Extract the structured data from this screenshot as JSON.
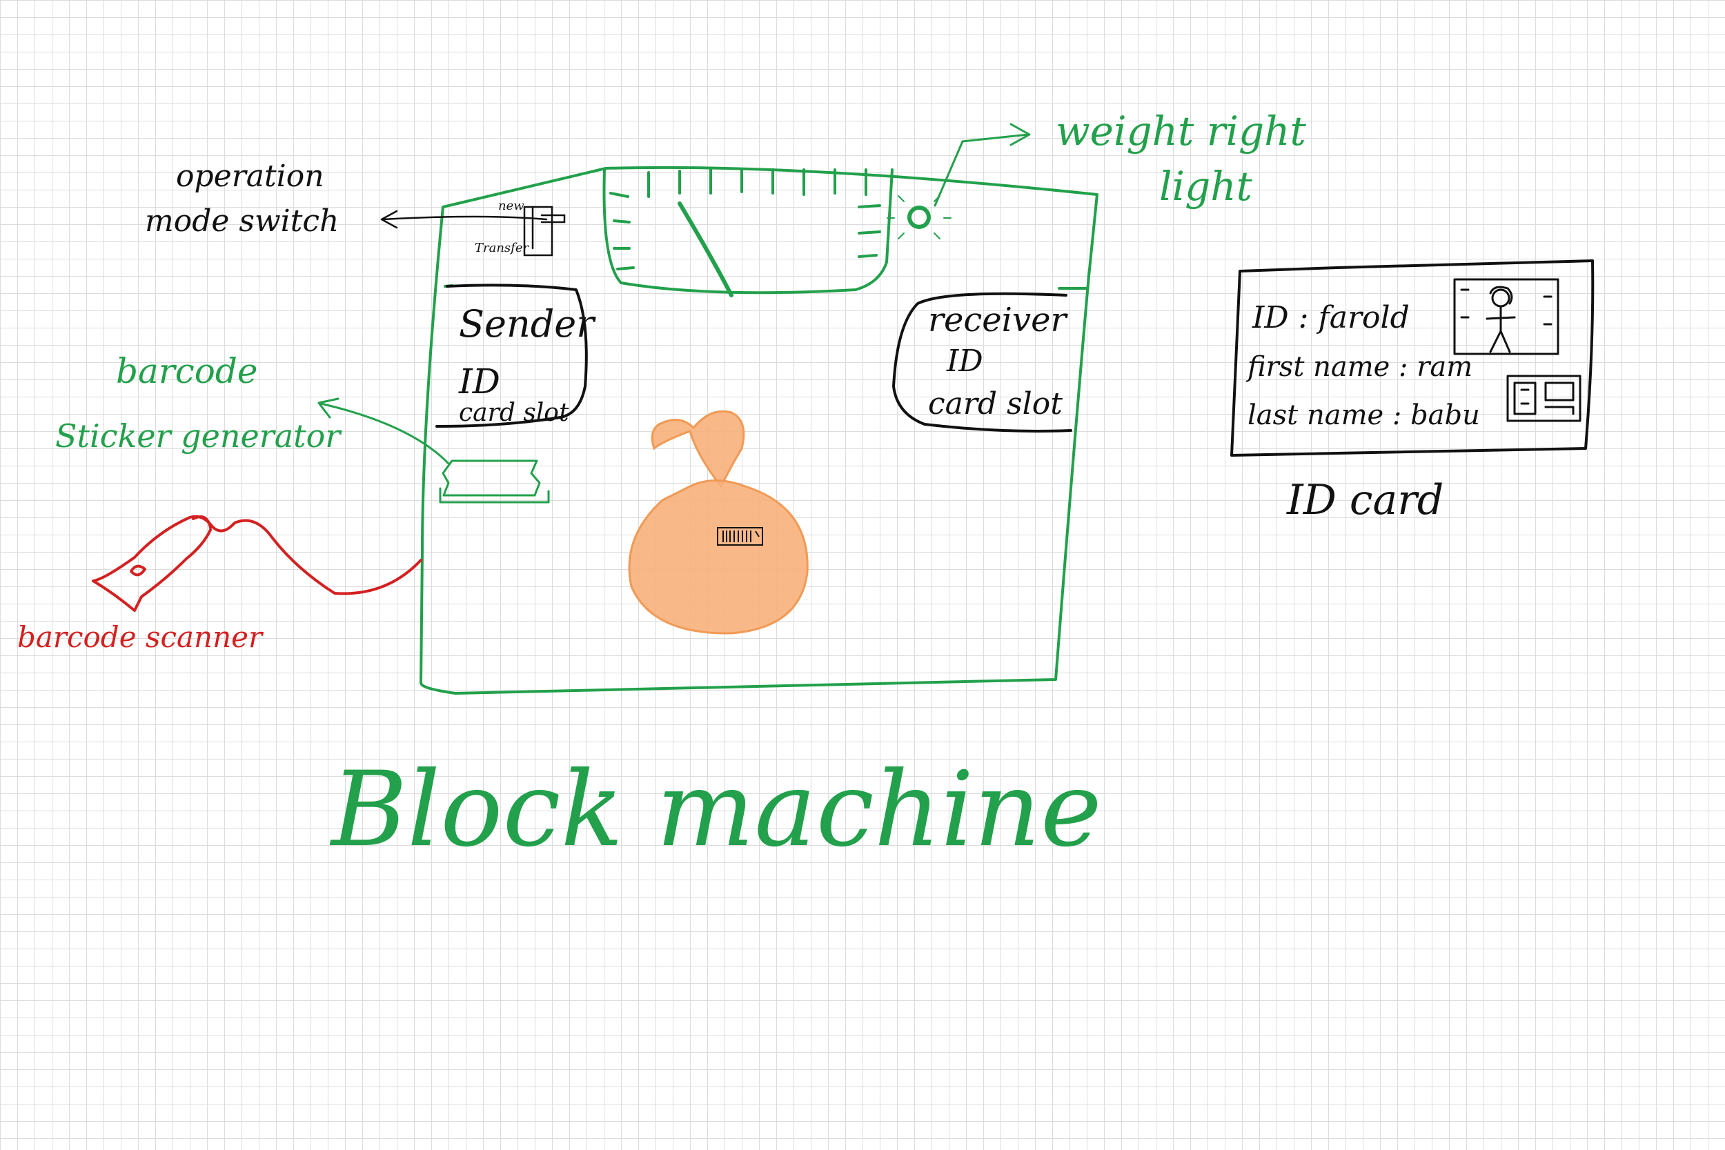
{
  "colors": {
    "machine": "#22a04b",
    "ink": "#111111",
    "scanner": "#d42020",
    "bag": "#f7b07a",
    "bag_edge": "#f09a55",
    "grid": "#dcdcdc"
  },
  "labels": {
    "operation_mode_switch_line1": "operation",
    "operation_mode_switch_line2": "mode switch",
    "switch_new": "new",
    "switch_transfer": "Transfer",
    "weight_right_light_line1": "weight right",
    "weight_right_light_line2": "light",
    "barcode_sticker_line1": "barcode",
    "barcode_sticker_line2": "Sticker generator",
    "barcode_scanner": "barcode scanner",
    "sender_slot_line1": "Sender",
    "sender_slot_line2": "ID",
    "sender_slot_line3": "card slot",
    "receiver_slot_line1": "receiver",
    "receiver_slot_line2": "ID",
    "receiver_slot_line3": "card slot",
    "title": "Block machine"
  },
  "id_card": {
    "id_line": "ID : farold",
    "first_name_line": "first name : ram",
    "last_name_line": "last name : babu",
    "caption": "ID card"
  },
  "icons": [
    "weight-dial-icon",
    "indicator-light-icon",
    "money-bag-icon",
    "barcode-scanner-icon",
    "portrait-icon",
    "qr-code-icon"
  ]
}
